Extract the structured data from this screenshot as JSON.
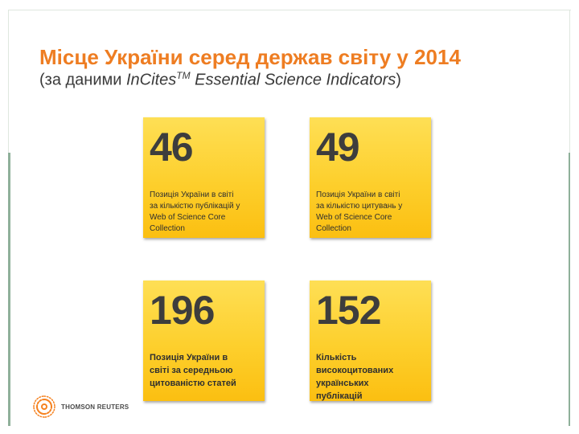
{
  "slide": {
    "title": "Місце України серед держав світу у 2014",
    "subtitle_prefix": "(за даними ",
    "subtitle_brand": "InCites",
    "subtitle_tm": "TM",
    "subtitle_rest": " Essential Science Indicators",
    "subtitle_close": ")"
  },
  "tiles": [
    {
      "value": "46",
      "lines": [
        "Позиція України в світі",
        "за кількістю публікацій у",
        "Web of Science Core",
        "Collection"
      ]
    },
    {
      "value": "49",
      "lines": [
        "Позиція України в світі",
        "за кількістю цитувань у",
        "Web of Science Core",
        "Collection"
      ]
    },
    {
      "value": "196",
      "lines": [
        "Позиція України в",
        "світі за середньою",
        "цитованістю статей"
      ]
    },
    {
      "value": "152",
      "lines": [
        "Кількість",
        "високоцитованих",
        "українських",
        "публікацій"
      ]
    }
  ],
  "footer": {
    "logo_text": "THOMSON REUTERS",
    "logo_color": "#f58220"
  },
  "colors": {
    "title": "#ee7d22",
    "tile": "#fdcf2c"
  }
}
